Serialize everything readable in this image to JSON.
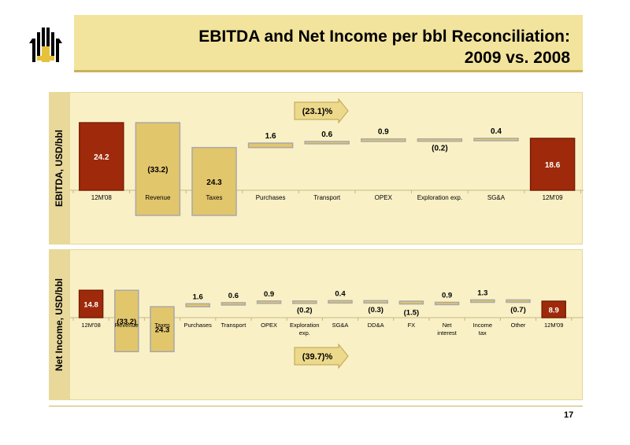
{
  "header": {
    "title_line1": "EBITDA and Net Income per bbl Reconciliation:",
    "title_line2": "2009 vs. 2008"
  },
  "colors": {
    "title_bg": "#f3e49d",
    "panel_bg": "#f9f0c6",
    "endpoint_bar": "#9e2a0b",
    "change_bar": "#e2c66c",
    "bar_border": "#a8a8a8"
  },
  "page_number": "17",
  "chart_data": [
    {
      "type": "bar",
      "subtype": "waterfall",
      "ylabel": "EBITDA, USD/bbl",
      "categories": [
        "12M'08",
        "Revenue",
        "Taxes",
        "Purchases",
        "Transport",
        "OPEX",
        "Exploration exp.",
        "SG&A",
        "12M'09"
      ],
      "value_labels": [
        "24.2",
        "(33.2)",
        "24.3",
        "1.6",
        "0.6",
        "0.9",
        "(0.2)",
        "0.4",
        "18.6"
      ],
      "values": [
        24.2,
        -33.2,
        24.3,
        1.6,
        0.6,
        0.9,
        -0.2,
        0.4,
        18.6
      ],
      "kinds": [
        "total",
        "change",
        "change",
        "change",
        "change",
        "change",
        "change",
        "change",
        "total"
      ],
      "annotation": "(23.1)%"
    },
    {
      "type": "bar",
      "subtype": "waterfall",
      "ylabel": "Net Income, USD/bbl",
      "categories": [
        "12M'08",
        "Revenue",
        "Taxes",
        "Purchases",
        "Transport",
        "OPEX",
        "Exploration exp.",
        "SG&A",
        "DD&A",
        "FX",
        "Net interest",
        "Income tax",
        "Other",
        "12M'09"
      ],
      "value_labels": [
        "14.8",
        "(33.2)",
        "24.3",
        "1.6",
        "0.6",
        "0.9",
        "(0.2)",
        "0.4",
        "(0.3)",
        "(1.5)",
        "0.9",
        "1.3",
        "(0.7)",
        "8.9"
      ],
      "values": [
        14.8,
        -33.2,
        24.3,
        1.6,
        0.6,
        0.9,
        -0.2,
        0.4,
        -0.3,
        -1.5,
        0.9,
        1.3,
        -0.7,
        8.9
      ],
      "kinds": [
        "total",
        "change",
        "change",
        "change",
        "change",
        "change",
        "change",
        "change",
        "change",
        "change",
        "change",
        "change",
        "change",
        "total"
      ],
      "annotation": "(39.7)%"
    }
  ]
}
